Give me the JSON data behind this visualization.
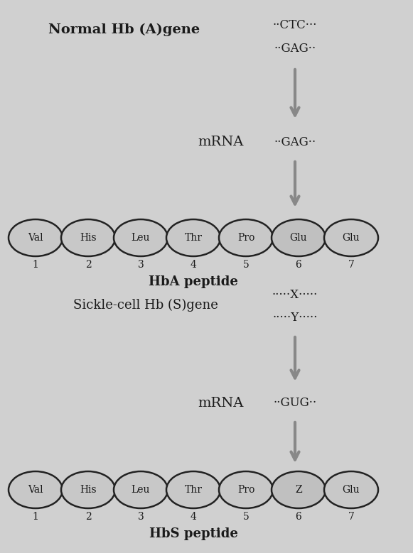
{
  "bg_color": "#d0d0d0",
  "label_color": "#1a1a1a",
  "text_color": "#1a1a1a",
  "ellipse_face_normal": "#c8c8c8",
  "ellipse_face_highlight": "#c0c0c0",
  "ellipse_edge": "#222222",
  "arrow_color": "#888888",
  "section1": {
    "gene_label": "Normal Hb (A)gene",
    "gene_seq1": "··CTC···",
    "gene_seq2": "··GAG··",
    "mrna_label": "mRNA",
    "mrna_seq": "··GAG··",
    "peptide_label": "HbA peptide",
    "peptide_nodes": [
      "Val",
      "His",
      "Leu",
      "Thr",
      "Pro",
      "Glu",
      "Glu"
    ],
    "peptide_numbers": [
      "1",
      "2",
      "3",
      "4",
      "5",
      "6",
      "7"
    ],
    "highlight_idx": 5
  },
  "section2": {
    "gene_label": "Sickle-cell Hb (S)gene",
    "gene_seq1": "·····X·····",
    "gene_seq2": "·····Y·····",
    "mrna_label": "mRNA",
    "mrna_seq": "··GUG··",
    "peptide_label": "HbS peptide",
    "peptide_nodes": [
      "Val",
      "His",
      "Leu",
      "Thr",
      "Pro",
      "Z",
      "Glu"
    ],
    "peptide_numbers": [
      "1",
      "2",
      "3",
      "4",
      "5",
      "6",
      "7"
    ],
    "highlight_idx": 5
  },
  "figsize": [
    5.81,
    7.79
  ],
  "dpi": 100
}
